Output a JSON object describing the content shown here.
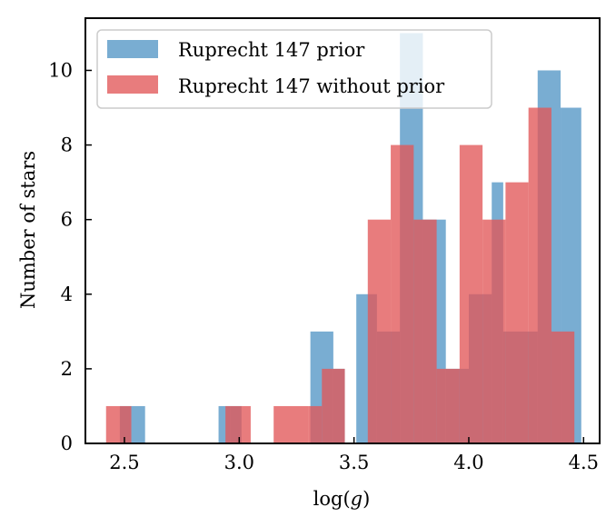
{
  "chart_data": {
    "type": "bar",
    "title": "",
    "xlabel": "log(g)",
    "ylabel": "Number of stars",
    "xlim": [
      2.33,
      4.57
    ],
    "ylim": [
      0,
      11.4
    ],
    "xticks": [
      "2.5",
      "3.0",
      "3.5",
      "4.0",
      "4.5"
    ],
    "yticks": [
      "0",
      "2",
      "4",
      "6",
      "8",
      "10"
    ],
    "legend_position": "upper-left",
    "series": [
      {
        "name": "Ruprecht 147 prior",
        "color": "#1f77b4",
        "alpha": 0.6,
        "bins": [
          {
            "x0": 2.48,
            "x1": 2.53,
            "count": 1
          },
          {
            "x0": 2.53,
            "x1": 2.59,
            "count": 1
          },
          {
            "x0": 2.91,
            "x1": 2.96,
            "count": 1
          },
          {
            "x0": 2.96,
            "x1": 3.01,
            "count": 1
          },
          {
            "x0": 3.31,
            "x1": 3.41,
            "count": 3
          },
          {
            "x0": 3.41,
            "x1": 3.46,
            "count": 2
          },
          {
            "x0": 3.51,
            "x1": 3.6,
            "count": 4
          },
          {
            "x0": 3.6,
            "x1": 3.7,
            "count": 3
          },
          {
            "x0": 3.7,
            "x1": 3.8,
            "count": 11
          },
          {
            "x0": 3.8,
            "x1": 3.9,
            "count": 6
          },
          {
            "x0": 3.9,
            "x1": 4.0,
            "count": 2
          },
          {
            "x0": 4.0,
            "x1": 4.1,
            "count": 4
          },
          {
            "x0": 4.1,
            "x1": 4.15,
            "count": 7
          },
          {
            "x0": 4.15,
            "x1": 4.2,
            "count": 3
          },
          {
            "x0": 4.2,
            "x1": 4.3,
            "count": 3
          },
          {
            "x0": 4.3,
            "x1": 4.4,
            "count": 10
          },
          {
            "x0": 4.4,
            "x1": 4.49,
            "count": 9
          }
        ]
      },
      {
        "name": "Ruprecht 147 without prior",
        "color": "#e15759",
        "alpha": 0.78,
        "bins": [
          {
            "x0": 2.42,
            "x1": 2.53,
            "count": 1
          },
          {
            "x0": 2.94,
            "x1": 3.05,
            "count": 1
          },
          {
            "x0": 3.15,
            "x1": 3.3,
            "count": 1
          },
          {
            "x0": 3.3,
            "x1": 3.36,
            "count": 1
          },
          {
            "x0": 3.36,
            "x1": 3.46,
            "count": 2
          },
          {
            "x0": 3.56,
            "x1": 3.66,
            "count": 6
          },
          {
            "x0": 3.66,
            "x1": 3.76,
            "count": 8
          },
          {
            "x0": 3.76,
            "x1": 3.86,
            "count": 6
          },
          {
            "x0": 3.86,
            "x1": 3.96,
            "count": 2
          },
          {
            "x0": 3.96,
            "x1": 4.06,
            "count": 8
          },
          {
            "x0": 4.06,
            "x1": 4.16,
            "count": 6
          },
          {
            "x0": 4.16,
            "x1": 4.26,
            "count": 7
          },
          {
            "x0": 4.26,
            "x1": 4.36,
            "count": 9
          },
          {
            "x0": 4.36,
            "x1": 4.46,
            "count": 3
          }
        ]
      }
    ]
  }
}
